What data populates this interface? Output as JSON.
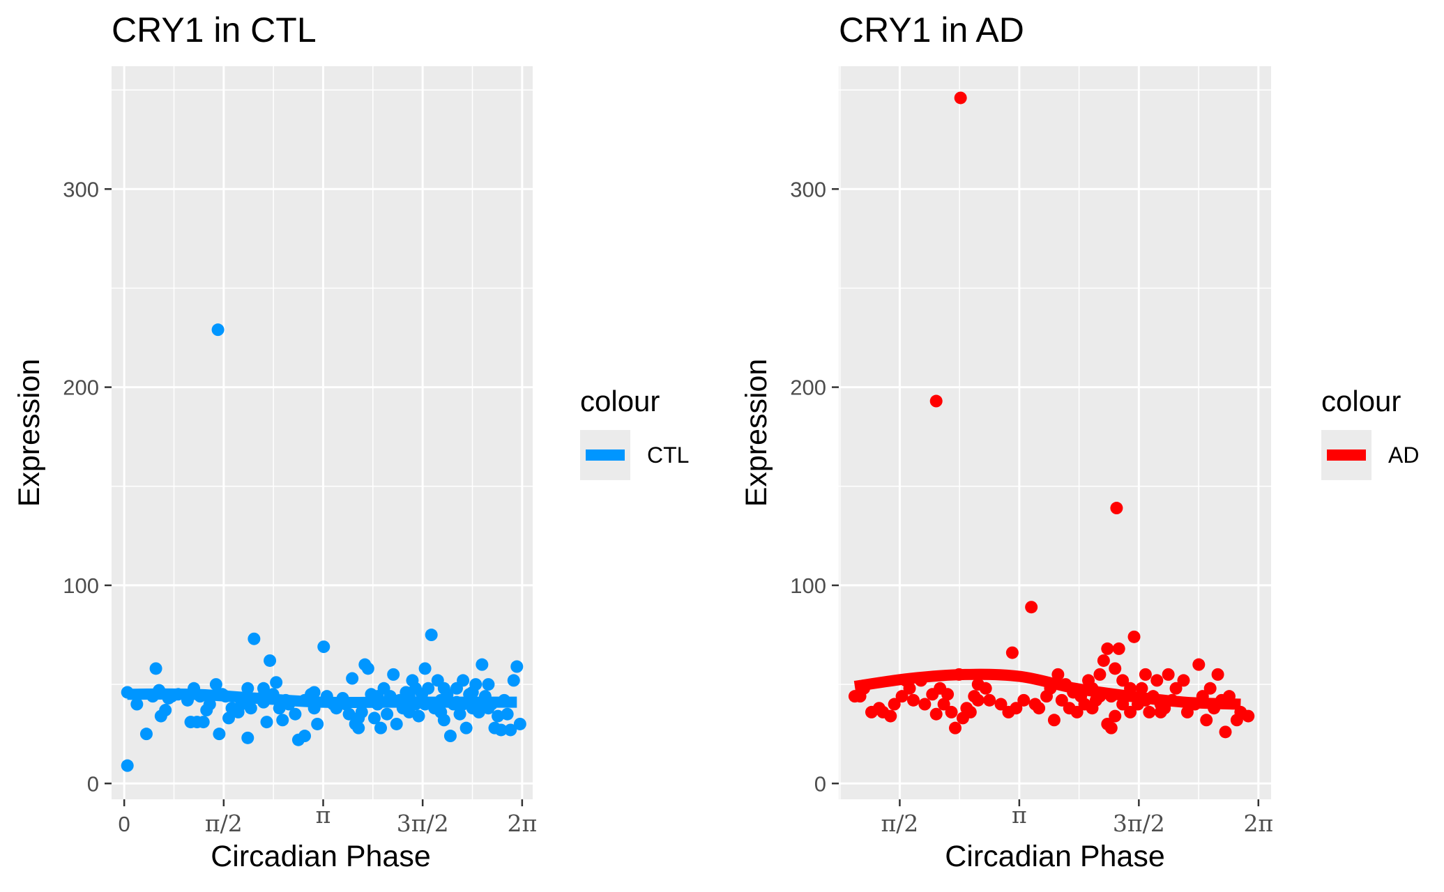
{
  "chart_data": [
    {
      "type": "scatter",
      "title": "CRY1 in CTL",
      "xlabel": "Circadian Phase",
      "ylabel": "Expression",
      "x_unit": "radians",
      "xlim": [
        -0.2,
        6.45
      ],
      "ylim": [
        -8,
        362
      ],
      "x_ticks": [
        0,
        1.5708,
        3.1416,
        4.7124,
        6.2832
      ],
      "x_tick_labels": [
        "0",
        "π/2",
        "π",
        "3π/2",
        "2π"
      ],
      "y_ticks": [
        0,
        100,
        200,
        300
      ],
      "y_tick_labels": [
        "0",
        "100",
        "200",
        "300"
      ],
      "grid": true,
      "legend": {
        "title": "colour",
        "entries": [
          "CTL"
        ],
        "position": "right"
      },
      "color": "#0096ff",
      "series": [
        {
          "name": "CTL",
          "points": [
            [
              0.05,
              9
            ],
            [
              0.05,
              46
            ],
            [
              0.2,
              40
            ],
            [
              0.35,
              25
            ],
            [
              0.5,
              58
            ],
            [
              0.55,
              47
            ],
            [
              0.58,
              34
            ],
            [
              0.65,
              37
            ],
            [
              0.7,
              43
            ],
            [
              0.85,
              45
            ],
            [
              1.0,
              42
            ],
            [
              1.05,
              31
            ],
            [
              1.1,
              48
            ],
            [
              1.15,
              31
            ],
            [
              1.2,
              44
            ],
            [
              1.25,
              31
            ],
            [
              1.35,
              40
            ],
            [
              1.45,
              50
            ],
            [
              1.5,
              25
            ],
            [
              1.55,
              45
            ],
            [
              1.48,
              229
            ],
            [
              1.6,
              44
            ],
            [
              1.65,
              33
            ],
            [
              1.7,
              38
            ],
            [
              1.85,
              40
            ],
            [
              1.95,
              48
            ],
            [
              1.95,
              23
            ],
            [
              2.0,
              38
            ],
            [
              2.05,
              73
            ],
            [
              2.15,
              43
            ],
            [
              2.2,
              48
            ],
            [
              2.25,
              31
            ],
            [
              2.3,
              62
            ],
            [
              2.35,
              45
            ],
            [
              2.4,
              51
            ],
            [
              2.45,
              38
            ],
            [
              2.5,
              32
            ],
            [
              2.55,
              42
            ],
            [
              2.6,
              40
            ],
            [
              2.7,
              35
            ],
            [
              2.75,
              22
            ],
            [
              2.85,
              24
            ],
            [
              2.95,
              45
            ],
            [
              3.0,
              38
            ],
            [
              3.05,
              30
            ],
            [
              3.15,
              69
            ],
            [
              3.2,
              44
            ],
            [
              3.3,
              40
            ],
            [
              3.35,
              38
            ],
            [
              3.45,
              43
            ],
            [
              3.55,
              35
            ],
            [
              3.6,
              53
            ],
            [
              3.65,
              30
            ],
            [
              3.7,
              28
            ],
            [
              3.75,
              36
            ],
            [
              3.8,
              60
            ],
            [
              3.85,
              58
            ],
            [
              3.9,
              45
            ],
            [
              3.95,
              33
            ],
            [
              4.0,
              40
            ],
            [
              4.05,
              28
            ],
            [
              4.1,
              48
            ],
            [
              4.15,
              35
            ],
            [
              4.2,
              44
            ],
            [
              4.25,
              55
            ],
            [
              4.3,
              30
            ],
            [
              4.35,
              42
            ],
            [
              4.4,
              38
            ],
            [
              4.45,
              46
            ],
            [
              4.5,
              36
            ],
            [
              4.55,
              52
            ],
            [
              4.6,
              40
            ],
            [
              4.65,
              34
            ],
            [
              4.7,
              45
            ],
            [
              4.75,
              58
            ],
            [
              4.8,
              48
            ],
            [
              4.85,
              75
            ],
            [
              4.9,
              38
            ],
            [
              4.95,
              52
            ],
            [
              5.0,
              42
            ],
            [
              5.05,
              32
            ],
            [
              5.1,
              45
            ],
            [
              5.15,
              24
            ],
            [
              5.2,
              40
            ],
            [
              5.25,
              48
            ],
            [
              5.3,
              35
            ],
            [
              5.35,
              52
            ],
            [
              5.4,
              28
            ],
            [
              5.45,
              45
            ],
            [
              5.5,
              38
            ],
            [
              5.55,
              50
            ],
            [
              5.6,
              36
            ],
            [
              5.65,
              60
            ],
            [
              5.7,
              44
            ],
            [
              5.75,
              50
            ],
            [
              5.8,
              40
            ],
            [
              5.85,
              28
            ],
            [
              5.9,
              34
            ],
            [
              5.95,
              27
            ],
            [
              6.05,
              35
            ],
            [
              6.1,
              27
            ],
            [
              6.15,
              52
            ],
            [
              6.2,
              59
            ],
            [
              6.25,
              30
            ],
            [
              3.5,
              40
            ],
            [
              3.7,
              33
            ],
            [
              4.0,
              44
            ],
            [
              4.25,
              42
            ],
            [
              4.5,
              44
            ],
            [
              4.75,
              40
            ],
            [
              5.0,
              36
            ],
            [
              5.25,
              41
            ],
            [
              5.5,
              46
            ],
            [
              5.75,
              38
            ],
            [
              6.0,
              42
            ],
            [
              2.85,
              42
            ],
            [
              3.0,
              46
            ],
            [
              1.8,
              36
            ],
            [
              2.2,
              41
            ],
            [
              0.45,
              44
            ],
            [
              0.75,
              44
            ],
            [
              1.3,
              37
            ],
            [
              4.6,
              48
            ],
            [
              5.05,
              48
            ],
            [
              5.35,
              40
            ]
          ]
        }
      ],
      "fit_line": {
        "x_range": [
          0.05,
          6.2
        ],
        "values": [
          45,
          45,
          43,
          41,
          41,
          41,
          41
        ]
      }
    },
    {
      "type": "scatter",
      "title": "CRY1 in AD",
      "xlabel": "Circadian Phase",
      "ylabel": "Expression",
      "x_unit": "radians",
      "xlim": [
        0.77,
        6.45
      ],
      "ylim": [
        -8,
        362
      ],
      "x_ticks": [
        1.5708,
        3.1416,
        4.7124,
        6.2832
      ],
      "x_tick_labels": [
        "π/2",
        "π",
        "3π/2",
        "2π"
      ],
      "y_ticks": [
        0,
        100,
        200,
        300
      ],
      "y_tick_labels": [
        "0",
        "100",
        "200",
        "300"
      ],
      "grid": true,
      "legend": {
        "title": "colour",
        "entries": [
          "AD"
        ],
        "position": "right"
      },
      "color": "#ff0000",
      "series": [
        {
          "name": "AD",
          "points": [
            [
              0.98,
              44
            ],
            [
              1.05,
              44
            ],
            [
              1.1,
              48
            ],
            [
              1.2,
              36
            ],
            [
              1.3,
              38
            ],
            [
              1.35,
              36
            ],
            [
              1.45,
              34
            ],
            [
              1.5,
              40
            ],
            [
              1.6,
              44
            ],
            [
              1.7,
              48
            ],
            [
              1.75,
              42
            ],
            [
              1.85,
              52
            ],
            [
              1.9,
              40
            ],
            [
              2.0,
              45
            ],
            [
              2.05,
              35
            ],
            [
              2.1,
              48
            ],
            [
              2.15,
              40
            ],
            [
              2.2,
              45
            ],
            [
              2.3,
              28
            ],
            [
              2.35,
              55
            ],
            [
              2.4,
              33
            ],
            [
              2.45,
              38
            ],
            [
              2.5,
              36
            ],
            [
              2.55,
              44
            ],
            [
              2.6,
              50
            ],
            [
              2.7,
              48
            ],
            [
              2.05,
              193
            ],
            [
              2.37,
              346
            ],
            [
              2.6,
              42
            ],
            [
              2.9,
              40
            ],
            [
              3.0,
              36
            ],
            [
              3.05,
              66
            ],
            [
              3.1,
              38
            ],
            [
              3.2,
              42
            ],
            [
              3.3,
              89
            ],
            [
              3.35,
              40
            ],
            [
              3.4,
              38
            ],
            [
              3.5,
              44
            ],
            [
              3.55,
              48
            ],
            [
              3.6,
              32
            ],
            [
              3.65,
              55
            ],
            [
              3.7,
              42
            ],
            [
              3.75,
              50
            ],
            [
              3.8,
              38
            ],
            [
              3.85,
              46
            ],
            [
              3.95,
              44
            ],
            [
              4.0,
              40
            ],
            [
              4.05,
              52
            ],
            [
              4.1,
              48
            ],
            [
              4.15,
              42
            ],
            [
              4.2,
              55
            ],
            [
              4.25,
              62
            ],
            [
              4.3,
              68
            ],
            [
              4.35,
              44
            ],
            [
              4.4,
              58
            ],
            [
              4.45,
              68
            ],
            [
              4.5,
              52
            ],
            [
              4.42,
              139
            ],
            [
              4.55,
              44
            ],
            [
              4.6,
              48
            ],
            [
              4.65,
              74
            ],
            [
              4.7,
              40
            ],
            [
              4.75,
              48
            ],
            [
              4.8,
              55
            ],
            [
              4.85,
              36
            ],
            [
              4.9,
              44
            ],
            [
              4.95,
              52
            ],
            [
              5.0,
              40
            ],
            [
              5.05,
              38
            ],
            [
              5.1,
              55
            ],
            [
              5.15,
              42
            ],
            [
              5.2,
              48
            ],
            [
              5.3,
              52
            ],
            [
              5.35,
              36
            ],
            [
              5.45,
              40
            ],
            [
              5.5,
              60
            ],
            [
              5.55,
              44
            ],
            [
              5.6,
              32
            ],
            [
              5.65,
              48
            ],
            [
              5.7,
              38
            ],
            [
              5.75,
              55
            ],
            [
              5.8,
              42
            ],
            [
              5.85,
              26
            ],
            [
              5.9,
              44
            ],
            [
              6.0,
              32
            ],
            [
              6.05,
              36
            ],
            [
              6.15,
              34
            ],
            [
              4.3,
              30
            ],
            [
              4.4,
              34
            ],
            [
              4.6,
              36
            ],
            [
              4.8,
              42
            ],
            [
              5.0,
              36
            ],
            [
              4.35,
              28
            ],
            [
              4.2,
              44
            ],
            [
              4.5,
              40
            ],
            [
              3.9,
              36
            ],
            [
              4.1,
              38
            ],
            [
              2.75,
              42
            ],
            [
              2.25,
              36
            ],
            [
              1.65,
              52
            ]
          ]
        }
      ],
      "fit_line": {
        "x_range": [
          0.98,
          6.05
        ],
        "values": [
          49,
          53,
          55,
          54,
          48,
          44,
          41,
          40
        ]
      }
    }
  ]
}
